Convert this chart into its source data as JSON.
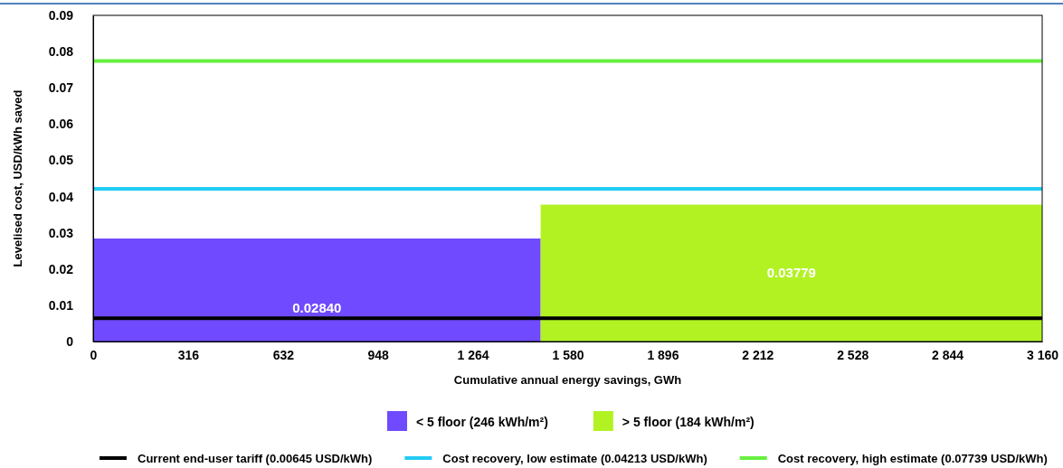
{
  "chart_data": {
    "type": "area",
    "xlabel": "Cumulative annual energy savings, GWh",
    "ylabel": "Levelised cost, USD/kWh saved",
    "xlim": [
      0,
      3160
    ],
    "xticks": [
      {
        "value": 0,
        "label": "0"
      },
      {
        "value": 316,
        "label": "316"
      },
      {
        "value": 632,
        "label": "632"
      },
      {
        "value": 948,
        "label": "948"
      },
      {
        "value": 1264,
        "label": "1 264"
      },
      {
        "value": 1580,
        "label": "1 580"
      },
      {
        "value": 1896,
        "label": "1 896"
      },
      {
        "value": 2212,
        "label": "2 212"
      },
      {
        "value": 2528,
        "label": "2 528"
      },
      {
        "value": 2844,
        "label": "2 844"
      },
      {
        "value": 3160,
        "label": "3 160"
      }
    ],
    "ylim": [
      0,
      0.09
    ],
    "yticks": [
      0,
      0.01,
      0.02,
      0.03,
      0.04,
      0.05,
      0.06,
      0.07,
      0.08,
      0.09
    ],
    "series": [
      {
        "name": "< 5 floor (246 kWh/m²)",
        "color": "#6f4aff",
        "x": [
          0,
          1490
        ],
        "values": [
          0.0284,
          0.0284
        ]
      },
      {
        "name": "> 5 floor (184 kWh/m²)",
        "color": "#b2f223",
        "x": [
          1490,
          3160
        ],
        "values": [
          0.03779,
          0.03779
        ]
      }
    ],
    "ref_lines": [
      {
        "axis": "y",
        "value": 0.00645,
        "label": "Current end-user tariff (0.00645 USD/kWh)",
        "color": "#000000"
      },
      {
        "axis": "y",
        "value": 0.04213,
        "label": "Cost recovery, low estimate (0.04213 USD/kWh)",
        "color": "#22ccf5"
      },
      {
        "axis": "y",
        "value": 0.07739,
        "label": "Cost recovery, high estimate (0.07739 USD/kWh)",
        "color": "#66f03f"
      }
    ],
    "annotations": [
      "0.02840",
      "0.03779"
    ],
    "legend": "bottom",
    "grid": false
  }
}
